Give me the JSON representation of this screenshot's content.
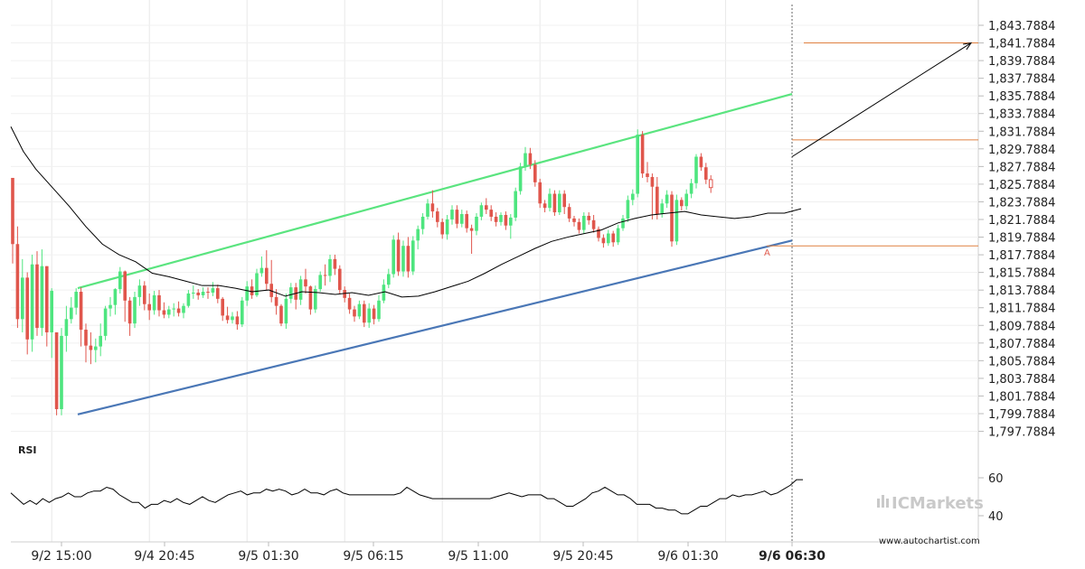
{
  "chart_data": {
    "type": "candlestick",
    "y_ticks": [
      "1,843.7884",
      "1,841.7884",
      "1,839.7884",
      "1,837.7884",
      "1,835.7884",
      "1,833.7884",
      "1,831.7884",
      "1,829.7884",
      "1,827.7884",
      "1,825.7884",
      "1,823.7884",
      "1,821.7884",
      "1,819.7884",
      "1,817.7884",
      "1,815.7884",
      "1,813.7884",
      "1,811.7884",
      "1,809.7884",
      "1,807.7884",
      "1,805.7884",
      "1,803.7884",
      "1,801.7884",
      "1,799.7884",
      "1,797.7884"
    ],
    "ylim": [
      1796.8,
      1844.3
    ],
    "x_ticks": [
      "9/2 15:00",
      "9/4 20:45",
      "9/5 01:30",
      "9/5 06:15",
      "9/5 11:00",
      "9/5 20:45",
      "9/6 01:30",
      "9/6 06:30"
    ],
    "highlight_x_tick": "9/6 06:30",
    "x_tick_index": [
      8,
      28,
      48,
      68,
      88,
      108,
      128,
      146
    ],
    "n_bars": 150,
    "candles": [
      [
        1826.5,
        1826.5,
        1816.8,
        1819.0
      ],
      [
        1819.0,
        1821.0,
        1809.5,
        1810.5
      ],
      [
        1810.5,
        1817.3,
        1809.0,
        1815.2
      ],
      [
        1815.2,
        1815.8,
        1806.5,
        1808.2
      ],
      [
        1808.2,
        1817.8,
        1806.8,
        1816.7
      ],
      [
        1816.7,
        1818.2,
        1808.6,
        1809.5
      ],
      [
        1809.5,
        1818.4,
        1808.6,
        1816.5
      ],
      [
        1816.5,
        1816.5,
        1807.4,
        1809.0
      ],
      [
        1809.0,
        1814.0,
        1806.1,
        1813.7
      ],
      [
        1809.0,
        1809.0,
        1799.6,
        1800.3
      ],
      [
        1800.3,
        1809.5,
        1799.6,
        1808.6
      ],
      [
        1808.6,
        1812.0,
        1806.8,
        1810.5
      ],
      [
        1810.5,
        1813.0,
        1810.0,
        1811.8
      ],
      [
        1811.8,
        1814.0,
        1811.0,
        1813.6
      ],
      [
        1813.6,
        1814.1,
        1807.4,
        1809.3
      ],
      [
        1809.3,
        1810.0,
        1805.6,
        1807.5
      ],
      [
        1807.5,
        1809.0,
        1805.4,
        1807.0
      ],
      [
        1807.0,
        1808.3,
        1805.6,
        1807.4
      ],
      [
        1807.4,
        1810.0,
        1806.3,
        1808.6
      ],
      [
        1808.6,
        1812.0,
        1808.1,
        1811.7
      ],
      [
        1811.7,
        1813.0,
        1810.8,
        1812.1
      ],
      [
        1812.1,
        1814.0,
        1811.0,
        1813.9
      ],
      [
        1813.9,
        1816.4,
        1813.4,
        1815.9
      ],
      [
        1815.9,
        1816.0,
        1810.2,
        1812.6
      ],
      [
        1812.6,
        1813.0,
        1808.6,
        1810.0
      ],
      [
        1810.0,
        1813.6,
        1809.5,
        1813.0
      ],
      [
        1813.0,
        1815.0,
        1812.0,
        1814.3
      ],
      [
        1814.3,
        1814.8,
        1811.5,
        1812.2
      ],
      [
        1812.2,
        1813.4,
        1810.4,
        1811.5
      ],
      [
        1811.5,
        1813.7,
        1811.0,
        1813.2
      ],
      [
        1813.2,
        1813.8,
        1810.8,
        1811.5
      ],
      [
        1811.5,
        1812.4,
        1810.6,
        1811.0
      ],
      [
        1811.0,
        1812.0,
        1810.6,
        1811.6
      ],
      [
        1811.6,
        1812.3,
        1810.8,
        1811.7
      ],
      [
        1811.7,
        1812.5,
        1810.8,
        1811.2
      ],
      [
        1811.2,
        1812.3,
        1810.6,
        1812.0
      ],
      [
        1812.0,
        1813.8,
        1811.8,
        1813.4
      ],
      [
        1813.4,
        1814.3,
        1812.8,
        1813.5
      ],
      [
        1813.5,
        1813.9,
        1812.7,
        1813.2
      ],
      [
        1813.2,
        1814.1,
        1812.9,
        1813.6
      ],
      [
        1813.6,
        1814.1,
        1812.8,
        1813.5
      ],
      [
        1813.5,
        1814.7,
        1813.1,
        1814.0
      ],
      [
        1814.0,
        1814.4,
        1812.3,
        1812.8
      ],
      [
        1812.8,
        1813.0,
        1810.3,
        1810.9
      ],
      [
        1810.9,
        1811.9,
        1810.0,
        1810.4
      ],
      [
        1810.4,
        1811.3,
        1810.0,
        1810.8
      ],
      [
        1810.8,
        1811.4,
        1809.3,
        1809.9
      ],
      [
        1809.9,
        1813.0,
        1809.6,
        1812.6
      ],
      [
        1812.6,
        1814.8,
        1812.0,
        1814.2
      ],
      [
        1814.2,
        1815.0,
        1812.8,
        1813.2
      ],
      [
        1813.2,
        1816.2,
        1813.0,
        1815.7
      ],
      [
        1815.7,
        1817.6,
        1815.3,
        1816.3
      ],
      [
        1816.3,
        1818.3,
        1813.8,
        1814.5
      ],
      [
        1814.5,
        1817.2,
        1812.4,
        1813.0
      ],
      [
        1813.0,
        1813.9,
        1811.0,
        1812.0
      ],
      [
        1812.0,
        1812.2,
        1809.7,
        1810.0
      ],
      [
        1810.0,
        1813.4,
        1809.4,
        1812.8
      ],
      [
        1812.8,
        1814.6,
        1812.3,
        1814.1
      ],
      [
        1814.1,
        1814.6,
        1811.6,
        1812.7
      ],
      [
        1812.7,
        1815.4,
        1812.1,
        1815.0
      ],
      [
        1815.0,
        1816.2,
        1813.4,
        1814.2
      ],
      [
        1814.2,
        1814.3,
        1811.0,
        1811.6
      ],
      [
        1811.6,
        1814.3,
        1811.2,
        1813.9
      ],
      [
        1813.9,
        1815.9,
        1813.6,
        1815.5
      ],
      [
        1815.5,
        1816.7,
        1814.3,
        1815.4
      ],
      [
        1815.4,
        1817.8,
        1814.7,
        1817.3
      ],
      [
        1817.3,
        1817.8,
        1815.5,
        1816.2
      ],
      [
        1816.2,
        1816.6,
        1813.4,
        1813.8
      ],
      [
        1813.8,
        1814.2,
        1812.4,
        1812.9
      ],
      [
        1812.9,
        1813.4,
        1811.1,
        1811.6
      ],
      [
        1811.6,
        1812.0,
        1810.2,
        1810.8
      ],
      [
        1810.8,
        1812.6,
        1810.5,
        1812.2
      ],
      [
        1812.2,
        1812.6,
        1809.6,
        1810.1
      ],
      [
        1810.1,
        1812.3,
        1809.5,
        1811.7
      ],
      [
        1811.7,
        1812.1,
        1809.9,
        1810.5
      ],
      [
        1810.5,
        1813.2,
        1810.2,
        1812.6
      ],
      [
        1812.6,
        1815.0,
        1812.3,
        1814.4
      ],
      [
        1814.4,
        1816.2,
        1814.0,
        1815.6
      ],
      [
        1815.6,
        1820.0,
        1815.2,
        1819.5
      ],
      [
        1819.5,
        1820.3,
        1815.4,
        1815.9
      ],
      [
        1815.9,
        1819.4,
        1815.3,
        1818.8
      ],
      [
        1818.8,
        1819.8,
        1815.2,
        1815.9
      ],
      [
        1815.9,
        1819.9,
        1815.5,
        1819.4
      ],
      [
        1819.4,
        1821.1,
        1818.4,
        1820.7
      ],
      [
        1820.7,
        1822.5,
        1820.1,
        1822.1
      ],
      [
        1822.1,
        1824.1,
        1821.8,
        1823.6
      ],
      [
        1823.6,
        1825.1,
        1822.0,
        1822.7
      ],
      [
        1822.7,
        1823.1,
        1820.9,
        1821.5
      ],
      [
        1821.5,
        1821.9,
        1819.6,
        1820.1
      ],
      [
        1820.1,
        1822.3,
        1819.5,
        1821.8
      ],
      [
        1821.8,
        1823.4,
        1821.2,
        1822.9
      ],
      [
        1822.9,
        1823.4,
        1820.8,
        1821.3
      ],
      [
        1821.3,
        1822.9,
        1820.9,
        1822.4
      ],
      [
        1822.4,
        1822.8,
        1820.3,
        1820.8
      ],
      [
        1820.8,
        1821.2,
        1817.9,
        1820.5
      ],
      [
        1820.5,
        1822.5,
        1820.0,
        1822.1
      ],
      [
        1822.1,
        1823.7,
        1821.7,
        1823.4
      ],
      [
        1823.4,
        1824.2,
        1822.4,
        1822.9
      ],
      [
        1822.9,
        1823.4,
        1821.6,
        1822.1
      ],
      [
        1822.1,
        1822.6,
        1821.0,
        1821.5
      ],
      [
        1821.5,
        1822.6,
        1821.1,
        1822.3
      ],
      [
        1822.3,
        1822.7,
        1820.6,
        1821.1
      ],
      [
        1821.1,
        1822.4,
        1819.6,
        1822.0
      ],
      [
        1822.0,
        1825.4,
        1821.6,
        1825.0
      ],
      [
        1825.0,
        1828.2,
        1824.6,
        1827.8
      ],
      [
        1827.8,
        1830.0,
        1827.3,
        1829.3
      ],
      [
        1829.3,
        1829.9,
        1827.5,
        1828.0
      ],
      [
        1828.0,
        1828.5,
        1825.5,
        1826.0
      ],
      [
        1826.0,
        1826.4,
        1823.1,
        1823.6
      ],
      [
        1823.6,
        1824.0,
        1822.6,
        1823.1
      ],
      [
        1823.1,
        1825.3,
        1822.7,
        1824.7
      ],
      [
        1824.7,
        1825.1,
        1822.2,
        1822.6
      ],
      [
        1822.6,
        1825.1,
        1822.3,
        1824.7
      ],
      [
        1824.7,
        1825.1,
        1822.4,
        1823.2
      ],
      [
        1823.2,
        1823.6,
        1821.5,
        1821.9
      ],
      [
        1821.9,
        1822.2,
        1821.0,
        1821.5
      ],
      [
        1821.5,
        1821.9,
        1820.2,
        1820.6
      ],
      [
        1820.6,
        1822.6,
        1820.2,
        1822.2
      ],
      [
        1822.2,
        1822.6,
        1821.2,
        1821.7
      ],
      [
        1821.7,
        1822.3,
        1820.3,
        1820.7
      ],
      [
        1820.7,
        1821.0,
        1819.3,
        1819.7
      ],
      [
        1819.7,
        1820.1,
        1818.6,
        1819.1
      ],
      [
        1819.1,
        1820.6,
        1818.8,
        1820.2
      ],
      [
        1820.2,
        1820.5,
        1818.7,
        1819.2
      ],
      [
        1819.2,
        1821.2,
        1818.9,
        1820.8
      ],
      [
        1820.8,
        1822.3,
        1820.5,
        1821.9
      ],
      [
        1821.9,
        1824.5,
        1821.5,
        1824.0
      ],
      [
        1824.0,
        1825.2,
        1823.4,
        1824.7
      ],
      [
        1824.7,
        1832.0,
        1824.3,
        1831.4
      ],
      [
        1831.4,
        1831.8,
        1826.5,
        1827.0
      ],
      [
        1827.0,
        1828.3,
        1826.0,
        1826.6
      ],
      [
        1826.6,
        1827.0,
        1821.8,
        1825.5
      ],
      [
        1825.5,
        1826.6,
        1821.8,
        1822.4
      ],
      [
        1822.4,
        1824.1,
        1822.0,
        1823.6
      ],
      [
        1823.6,
        1825.1,
        1823.1,
        1824.6
      ],
      [
        1824.6,
        1825.0,
        1818.7,
        1819.3
      ],
      [
        1819.3,
        1824.6,
        1818.9,
        1824.0
      ],
      [
        1824.0,
        1824.3,
        1822.8,
        1823.3
      ],
      [
        1823.3,
        1825.2,
        1822.9,
        1824.7
      ],
      [
        1824.7,
        1826.4,
        1824.2,
        1825.9
      ],
      [
        1825.9,
        1829.2,
        1825.3,
        1828.9
      ],
      [
        1828.9,
        1829.3,
        1827.3,
        1827.7
      ],
      [
        1827.7,
        1828.2,
        1825.8,
        1826.3
      ],
      [
        1826.3,
        1826.8,
        1824.8,
        1825.4
      ]
    ],
    "sma": [
      [
        0,
        1832.3
      ],
      [
        3,
        1829.5
      ],
      [
        6,
        1827.5
      ],
      [
        10,
        1825.4
      ],
      [
        14,
        1823.3
      ],
      [
        18,
        1821.0
      ],
      [
        22,
        1819.0
      ],
      [
        26,
        1817.8
      ],
      [
        30,
        1817.0
      ],
      [
        34,
        1815.7
      ],
      [
        38,
        1815.3
      ],
      [
        42,
        1814.8
      ],
      [
        46,
        1814.3
      ],
      [
        50,
        1814.3
      ],
      [
        54,
        1814.0
      ],
      [
        58,
        1813.6
      ],
      [
        62,
        1813.8
      ],
      [
        66,
        1813.1
      ],
      [
        70,
        1813.6
      ],
      [
        74,
        1813.5
      ],
      [
        78,
        1813.3
      ],
      [
        82,
        1813.5
      ],
      [
        86,
        1813.2
      ],
      [
        90,
        1813.6
      ],
      [
        94,
        1813.0
      ],
      [
        98,
        1813.1
      ],
      [
        102,
        1813.6
      ],
      [
        106,
        1814.2
      ],
      [
        110,
        1814.8
      ],
      [
        114,
        1815.7
      ],
      [
        118,
        1816.7
      ],
      [
        122,
        1817.6
      ],
      [
        126,
        1818.5
      ],
      [
        130,
        1819.3
      ],
      [
        134,
        1819.8
      ],
      [
        138,
        1820.2
      ],
      [
        142,
        1820.6
      ],
      [
        146,
        1821.4
      ],
      [
        150,
        1821.9
      ],
      [
        154,
        1822.3
      ],
      [
        158,
        1822.5
      ],
      [
        162,
        1822.7
      ],
      [
        166,
        1822.3
      ],
      [
        170,
        1822.1
      ],
      [
        174,
        1821.9
      ],
      [
        178,
        1822.1
      ],
      [
        182,
        1822.5
      ],
      [
        186,
        1822.5
      ],
      [
        190,
        1823.0
      ]
    ],
    "channel": {
      "upper": {
        "x0": 8,
        "y0": 1814.0,
        "x1": 146,
        "y1": 1836.0
      },
      "lower": {
        "x0": 8,
        "y0": 1799.7,
        "x1": 146,
        "y1": 1819.4
      }
    },
    "levels": {
      "top": 1841.7884,
      "mid": 1830.8,
      "low": 1818.8
    },
    "marker_label": "A",
    "rsi": {
      "label": "RSI",
      "ticks": [
        "60",
        "40"
      ],
      "ylim": [
        35,
        63
      ],
      "values": [
        52,
        49,
        46,
        48,
        46,
        49,
        47,
        49,
        50,
        52,
        50,
        50,
        52,
        53,
        53,
        55,
        54,
        51,
        49,
        47,
        47,
        44,
        46,
        46,
        48,
        47,
        49,
        47,
        46,
        48,
        50,
        48,
        47,
        49,
        51,
        52,
        53,
        51,
        52,
        52,
        54,
        53,
        54,
        53,
        51,
        52,
        54,
        52,
        52,
        51,
        53,
        54,
        52,
        51,
        51,
        51,
        51,
        51,
        51,
        51,
        51,
        52,
        55,
        53,
        51,
        50,
        49,
        49,
        49,
        49,
        49,
        49,
        49,
        49,
        49,
        49,
        50,
        51,
        52,
        51,
        50,
        51,
        51,
        51,
        49,
        49,
        47,
        45,
        45,
        47,
        49,
        52,
        53,
        55,
        53,
        51,
        51,
        49,
        46,
        46,
        46,
        44,
        44,
        43,
        43,
        41,
        41,
        43,
        45,
        45,
        47,
        49,
        49,
        51,
        50,
        51,
        51,
        52,
        53,
        51,
        52,
        54,
        56,
        59,
        59
      ]
    }
  },
  "watermark": {
    "brand": "ICMarkets",
    "site": "www.autochartist.com"
  },
  "colors": {
    "bull": "#4ee57f",
    "bear": "#e0564c",
    "channel_upper": "#5ae47f",
    "channel_lower": "#4a77b6",
    "level": "#e08040",
    "sma": "#000000",
    "rsi": "#000000"
  }
}
